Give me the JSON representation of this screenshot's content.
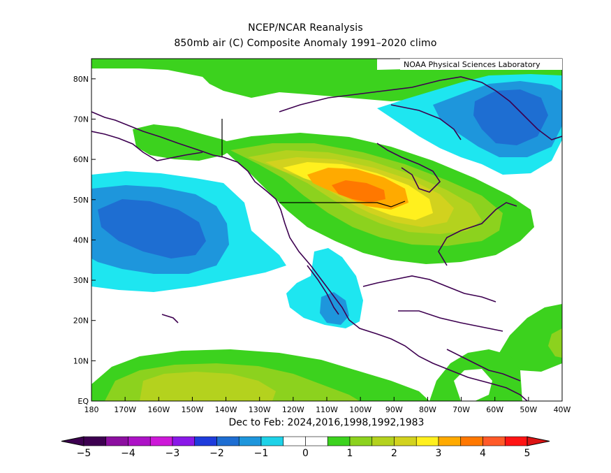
{
  "title": "NCEP/NCAR Reanalysis",
  "subtitle": "850mb air (C) Composite Anomaly 1991–2020 climo",
  "credit": "NOAA Physical Sciences Laboratory",
  "period": "Dec to Feb: 2024,2016,1998,1992,1983",
  "lat_labels": [
    "80N",
    "70N",
    "60N",
    "50N",
    "40N",
    "30N",
    "20N",
    "10N",
    "EQ"
  ],
  "lon_labels": [
    "180",
    "170W",
    "160W",
    "150W",
    "140W",
    "130W",
    "120W",
    "110W",
    "100W",
    "90W",
    "80W",
    "70W",
    "60W",
    "50W",
    "40W"
  ],
  "colorbar": {
    "labels": [
      "−5",
      "−4",
      "−3",
      "−2",
      "−1",
      "0",
      "1",
      "2",
      "3",
      "4",
      "5"
    ],
    "colors": [
      "#3d0050",
      "#8c0fa0",
      "#ad12c6",
      "#cd18d8",
      "#8a18e8",
      "#1e3cdc",
      "#1e6ed2",
      "#1e96dc",
      "#1ed2e8",
      "#ffffff",
      "#ffffff",
      "#3cd21e",
      "#8cd21e",
      "#b4d21e",
      "#d2d21e",
      "#fff01e",
      "#ffaa00",
      "#ff7800",
      "#ff5a28",
      "#ff1414"
    ],
    "under_color": "#3d0050",
    "over_color": "#dc1414"
  },
  "map": {
    "lat_range": [
      0,
      85
    ],
    "lon_range": [
      -180,
      -40
    ],
    "unit": "C"
  },
  "fill_colors": {
    "green": "#3cd21e",
    "lime": "#8cd21e",
    "yellow_green": "#b4d21e",
    "olive": "#d2d21e",
    "yellow": "#fff01e",
    "orange": "#ffaa00",
    "dark_orange": "#ff7800",
    "cyan": "#1ee6f0",
    "light_blue": "#1e96dc",
    "blue": "#1e6ed2",
    "coast": "#3d0050"
  }
}
